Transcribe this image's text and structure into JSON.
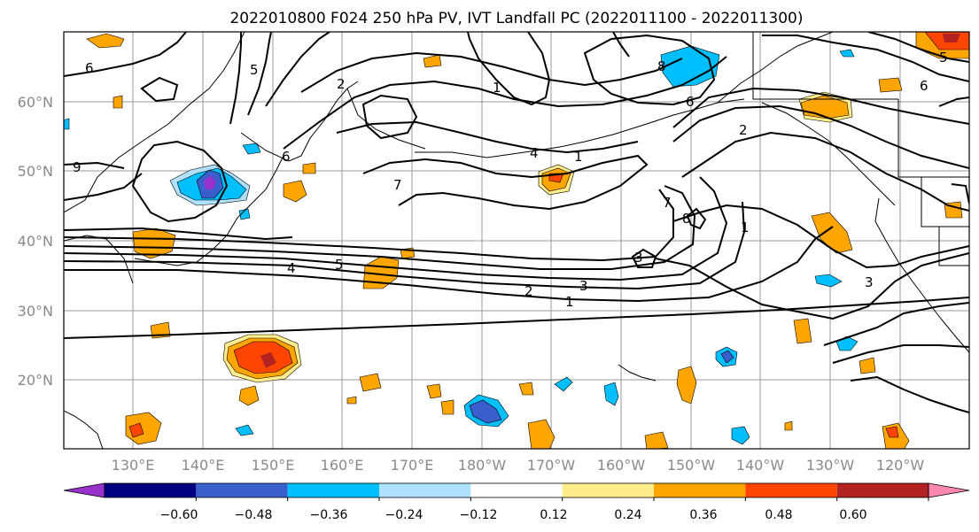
{
  "figure": {
    "title": "2022010800 F024 250 hPa PV, IVT Landfall PC (2022011100 - 2022011300)"
  },
  "map": {
    "lat_labels": [
      "60°N",
      "50°N",
      "40°N",
      "30°N",
      "20°N"
    ],
    "lon_labels": [
      "130°E",
      "140°E",
      "150°E",
      "160°E",
      "170°E",
      "180°W",
      "170°W",
      "160°W",
      "150°W",
      "140°W",
      "130°W",
      "120°W"
    ],
    "gridlines": true,
    "coastlines": true
  },
  "contours": {
    "variable": "250 hPa PV",
    "color": "#000000",
    "labels": [
      "6",
      "5",
      "6",
      "2",
      "1",
      "7",
      "4",
      "1",
      "4",
      "5",
      "2",
      "3",
      "1",
      "6",
      "8",
      "2",
      "7",
      "8",
      "1",
      "3",
      "3",
      "9",
      "5",
      "6"
    ]
  },
  "shading": {
    "variable": "IVT Landfall PC"
  },
  "colorbar": {
    "tick_labels": [
      "−0.60",
      "−0.48",
      "−0.36",
      "−0.24",
      "−0.12",
      "0.12",
      "0.24",
      "0.36",
      "0.48",
      "0.60"
    ],
    "colors": [
      "#9932CC",
      "#000080",
      "#3A5FCD",
      "#00BFFF",
      "#B0E2FF",
      "#FFFFFF",
      "#FFEC8B",
      "#FFA500",
      "#FF4500",
      "#B22222",
      "#FF88B0"
    ],
    "extend": "both"
  }
}
